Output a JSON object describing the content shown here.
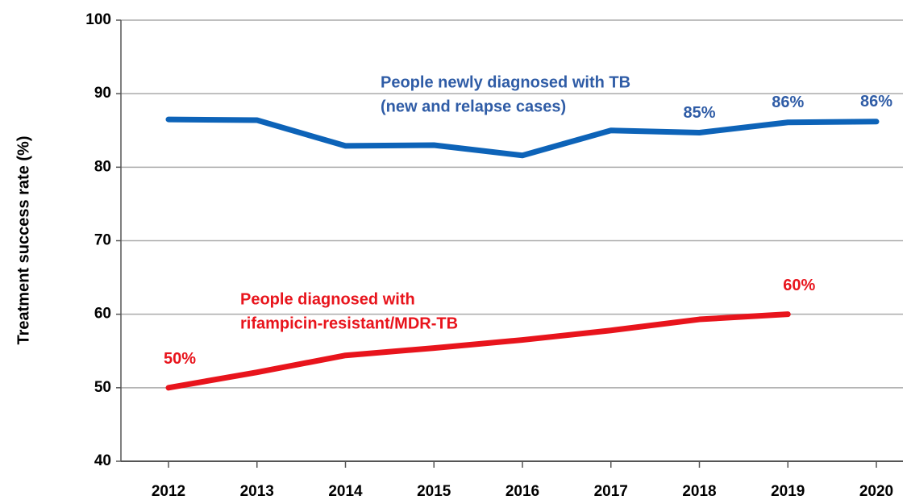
{
  "chart_data": {
    "type": "line",
    "ylabel": "Treatment success rate (%)",
    "categories": [
      "2012",
      "2013",
      "2014",
      "2015",
      "2016",
      "2017",
      "2018",
      "2019",
      "2020"
    ],
    "ylim": [
      40,
      100
    ],
    "yticks": [
      40,
      50,
      60,
      70,
      80,
      90,
      100
    ],
    "grid": true,
    "series": [
      {
        "name": [
          "People newly diagnosed with TB",
          "(new and relapse cases)"
        ],
        "color": "#0d63b8",
        "label_color": "#2f5ca6",
        "values": [
          86.5,
          86.4,
          82.9,
          83.0,
          81.6,
          85.0,
          84.7,
          86.1,
          86.2
        ],
        "value_labels": [
          null,
          null,
          null,
          null,
          null,
          null,
          "85%",
          "86%",
          "86%"
        ]
      },
      {
        "name": [
          "People diagnosed with",
          "rifampicin-resistant/MDR-TB"
        ],
        "color": "#e8141c",
        "label_color": "#e8141c",
        "values": [
          50,
          52.1,
          54.4,
          55.4,
          56.5,
          57.8,
          59.3,
          60,
          null
        ],
        "value_labels": [
          "50%",
          null,
          null,
          null,
          null,
          null,
          null,
          "60%",
          null
        ]
      }
    ]
  }
}
